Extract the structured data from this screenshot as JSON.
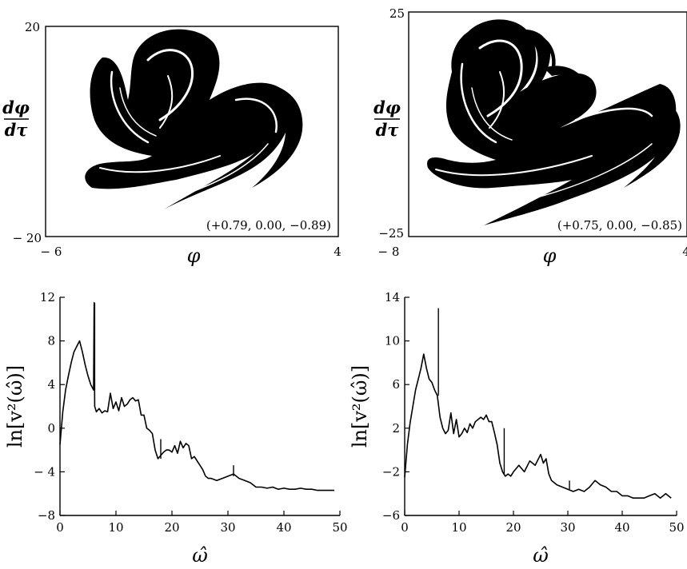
{
  "chart_data": [
    {
      "type": "scatter",
      "panel": "phase-portrait-left",
      "title": "",
      "xlabel": "φ",
      "ylabel_num": "dφ",
      "ylabel_den": "dτ",
      "xlim": [
        -6,
        4
      ],
      "ylim": [
        -20,
        20
      ],
      "xticks": [
        "− 6",
        "4"
      ],
      "yticks": [
        "20",
        "− 20"
      ],
      "annotation": "(+0.79, 0.00, −0.89)",
      "description_points": "strange attractor (dense point cloud)"
    },
    {
      "type": "scatter",
      "panel": "phase-portrait-right",
      "title": "",
      "xlabel": "φ",
      "ylabel_num": "dφ",
      "ylabel_den": "dτ",
      "xlim": [
        -8,
        4
      ],
      "ylim": [
        -25,
        25
      ],
      "xticks": [
        "− 8",
        "4"
      ],
      "yticks": [
        "25",
        "−25"
      ],
      "annotation": "(+0.75, 0.00, −0.85)",
      "description_points": "strange attractor (dense point cloud)"
    },
    {
      "type": "line",
      "panel": "spectrum-left",
      "xlabel": "ω̂",
      "ylabel": "ln[v²(ω̂)]",
      "xlim": [
        0,
        50
      ],
      "ylim": [
        -8,
        12
      ],
      "xticks": [
        0,
        10,
        20,
        30,
        40,
        50
      ],
      "yticks": [
        12,
        8,
        4,
        0,
        -4,
        -8
      ],
      "ytick_labels": [
        "12",
        "8",
        "4",
        "0",
        "− 4",
        "−8"
      ],
      "x": [
        0,
        0.5,
        1,
        1.5,
        2,
        2.5,
        3,
        3.5,
        4,
        4.5,
        5,
        5.5,
        6,
        6.1,
        6.2,
        6.5,
        7,
        7.5,
        8,
        8.5,
        9,
        9.5,
        10,
        10.5,
        11,
        11.5,
        12,
        12.5,
        13,
        13.5,
        14,
        14.5,
        15,
        15.5,
        16,
        16.5,
        17,
        17.5,
        18,
        18.5,
        19,
        19.5,
        20,
        20.5,
        21,
        21.5,
        22,
        22.5,
        23,
        23.5,
        24,
        24.5,
        25,
        25.5,
        26,
        26.5,
        27,
        28,
        29,
        30,
        31,
        32,
        33,
        34,
        35,
        36,
        37,
        38,
        39,
        40,
        41,
        42,
        43,
        44,
        45,
        46,
        47,
        48,
        49
      ],
      "y": [
        -1.5,
        1.5,
        3.5,
        4.8,
        6.0,
        7.0,
        7.5,
        8.0,
        7.0,
        5.8,
        4.8,
        4.0,
        3.5,
        11.5,
        2.0,
        1.5,
        1.8,
        1.4,
        1.6,
        1.5,
        3.2,
        1.8,
        2.4,
        1.6,
        2.8,
        2.0,
        2.2,
        2.6,
        2.8,
        2.5,
        2.6,
        1.2,
        1.2,
        0.0,
        -0.2,
        -0.5,
        -2.0,
        -2.8,
        -2.5,
        -2.2,
        -2.0,
        -2.0,
        -2.2,
        -1.6,
        -2.3,
        -1.2,
        -1.8,
        -1.4,
        -1.6,
        -2.8,
        -2.6,
        -3.0,
        -3.4,
        -3.8,
        -4.4,
        -4.6,
        -4.6,
        -4.8,
        -4.6,
        -4.4,
        -4.2,
        -4.6,
        -4.8,
        -5.0,
        -5.4,
        -5.4,
        -5.5,
        -5.4,
        -5.6,
        -5.5,
        -5.6,
        -5.6,
        -5.5,
        -5.6,
        -5.6,
        -5.7,
        -5.7,
        -5.7,
        -5.7
      ],
      "spikes": [
        {
          "x": 6.2,
          "y0": 3.5,
          "y1": 11.5
        },
        {
          "x": 18.0,
          "y0": -2.8,
          "y1": -1.0
        },
        {
          "x": 31.0,
          "y0": -4.4,
          "y1": -3.4
        }
      ]
    },
    {
      "type": "line",
      "panel": "spectrum-right",
      "xlabel": "ω̂",
      "ylabel": "ln[v²(ω̂)]",
      "xlim": [
        0,
        50
      ],
      "ylim": [
        -6,
        14
      ],
      "xticks": [
        0,
        10,
        20,
        30,
        40,
        50
      ],
      "yticks": [
        14,
        10,
        6,
        2,
        -2,
        -6
      ],
      "ytick_labels": [
        "14",
        "10",
        "6",
        "2",
        "−2",
        "−6"
      ],
      "x": [
        0,
        0.5,
        1,
        1.5,
        2,
        2.5,
        3,
        3.5,
        4,
        4.5,
        5,
        5.5,
        6,
        6.5,
        7,
        7.5,
        8,
        8.5,
        9,
        9.5,
        10,
        10.5,
        11,
        11.5,
        12,
        12.5,
        13,
        13.5,
        14,
        14.5,
        15,
        15.5,
        16,
        16.5,
        17,
        17.5,
        18,
        18.5,
        19,
        19.5,
        20,
        21,
        22,
        23,
        24,
        25,
        25.5,
        26,
        26.5,
        27,
        28,
        29,
        30,
        31,
        32,
        33,
        34,
        35,
        35.5,
        36,
        37,
        38,
        39,
        40,
        41,
        42,
        43,
        44,
        45,
        46,
        47,
        48,
        49
      ],
      "y": [
        -2.5,
        0.5,
        2.5,
        4.0,
        5.5,
        6.5,
        7.5,
        8.8,
        7.5,
        6.5,
        6.2,
        5.5,
        5.0,
        3.0,
        2.0,
        1.5,
        1.8,
        3.4,
        1.5,
        2.8,
        1.2,
        1.5,
        2.0,
        1.6,
        2.4,
        2.0,
        2.6,
        2.8,
        3.0,
        2.8,
        3.2,
        2.6,
        2.6,
        1.6,
        0.5,
        -1.2,
        -2.0,
        -2.4,
        -2.2,
        -2.4,
        -2.0,
        -1.4,
        -2.0,
        -1.0,
        -1.4,
        -0.4,
        -1.2,
        -0.8,
        -2.2,
        -2.8,
        -3.2,
        -3.4,
        -3.6,
        -3.8,
        -3.6,
        -3.8,
        -3.4,
        -2.8,
        -3.0,
        -3.2,
        -3.4,
        -3.8,
        -3.8,
        -4.2,
        -4.2,
        -4.4,
        -4.4,
        -4.4,
        -4.2,
        -4.0,
        -4.4,
        -4.0,
        -4.4
      ],
      "spikes": [
        {
          "x": 6.2,
          "y0": 5.0,
          "y1": 13.0
        },
        {
          "x": 18.3,
          "y0": -2.2,
          "y1": 2.0
        },
        {
          "x": 30.3,
          "y0": -3.6,
          "y1": -2.8
        }
      ]
    }
  ]
}
